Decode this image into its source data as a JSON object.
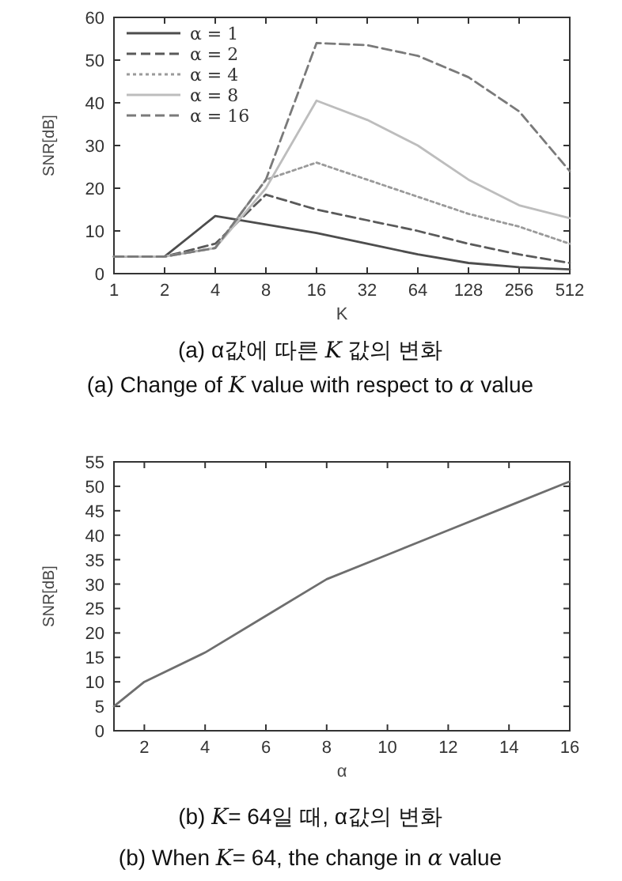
{
  "chart_data": [
    {
      "type": "line",
      "log": "x",
      "xlabel": "K",
      "ylabel": "SNR[dB]",
      "x": [
        1,
        2,
        4,
        8,
        16,
        32,
        64,
        128,
        256,
        512
      ],
      "xlim": [
        1,
        512
      ],
      "xticks": [
        1,
        2,
        4,
        8,
        16,
        32,
        64,
        128,
        256,
        512
      ],
      "ylim": [
        0,
        60
      ],
      "yticks": [
        0,
        10,
        20,
        30,
        40,
        50,
        60
      ],
      "legend": "top left",
      "series": [
        {
          "name": "α = 1",
          "color": "#4d4d4d",
          "line_style": "solid",
          "values": [
            4,
            4,
            13.5,
            11.5,
            9.5,
            7,
            4.5,
            2.5,
            1.5,
            1
          ]
        },
        {
          "name": "α = 2",
          "color": "#5a5a5a",
          "line_style": "dashed",
          "values": [
            4,
            4,
            7,
            18.5,
            15,
            12.5,
            10,
            7,
            4.5,
            2.5
          ]
        },
        {
          "name": "α = 4",
          "color": "#9a9a9a",
          "line_style": "dotted",
          "values": [
            4,
            4,
            6,
            22,
            26,
            22,
            18,
            14,
            11,
            7
          ]
        },
        {
          "name": "α = 8",
          "color": "#bdbdbd",
          "line_style": "solid",
          "values": [
            4,
            4,
            6,
            20,
            40.5,
            36,
            30,
            22,
            16,
            13
          ]
        },
        {
          "name": "α = 16",
          "color": "#7a7a7a",
          "line_style": "dashed",
          "values": [
            4,
            4,
            6,
            22,
            54,
            53.5,
            51,
            46,
            38,
            24
          ]
        }
      ],
      "annotations": [
        "(a) α값에 따른 *K* 값의 변화",
        "(a) Change of *K* value with respect to *α* value"
      ]
    },
    {
      "type": "line",
      "xlabel": "α",
      "ylabel": "SNR[dB]",
      "x": [
        1,
        2,
        4,
        6,
        8,
        10,
        12,
        14,
        16
      ],
      "xlim": [
        1,
        16
      ],
      "xticks": [
        2,
        4,
        6,
        8,
        10,
        12,
        14,
        16
      ],
      "ylim": [
        0,
        55
      ],
      "yticks": [
        0,
        5,
        10,
        15,
        20,
        25,
        30,
        35,
        40,
        45,
        50,
        55
      ],
      "series": [
        {
          "color": "#6e6e6e",
          "values": [
            5,
            10,
            16,
            23.5,
            31,
            36,
            41,
            46,
            51
          ]
        }
      ],
      "annotations": [
        "(b) *K*= 64일 때, α값의 변화",
        "(b) When *K*= 64, the change in *α* value"
      ]
    }
  ]
}
